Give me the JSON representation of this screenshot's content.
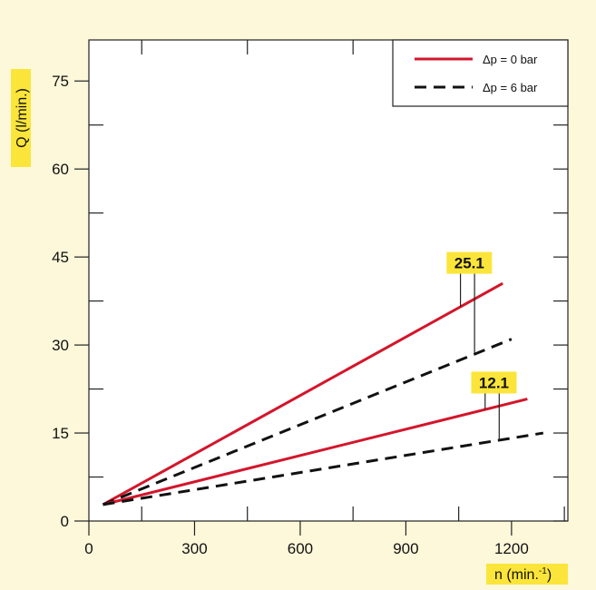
{
  "chart_data": {
    "type": "line",
    "xlabel": "n (min.",
    "xlabel_sup": "-1",
    "xlabel_close": ")",
    "ylabel": "Q (l/min.)",
    "xlim": [
      0,
      1360
    ],
    "ylim": [
      0,
      82
    ],
    "x_ticks": [
      0,
      300,
      600,
      900,
      1200
    ],
    "y_ticks": [
      0,
      15,
      30,
      45,
      60,
      75
    ],
    "grid": false,
    "legend_position": "top-right",
    "colors": {
      "solid": "#d4152a",
      "dashed": "#111111",
      "label_bg": "#fbe53a",
      "background": "#fdf8da"
    },
    "series": [
      {
        "name": "Δp = 0 bar",
        "style": "solid",
        "group": "25.1",
        "points": [
          [
            40,
            2.8
          ],
          [
            1175,
            40.5
          ]
        ]
      },
      {
        "name": "Δp = 6 bar",
        "style": "dashed",
        "group": "25.1",
        "points": [
          [
            40,
            2.8
          ],
          [
            1200,
            31.0
          ]
        ]
      },
      {
        "name": "Δp = 0 bar",
        "style": "solid",
        "group": "12.1",
        "points": [
          [
            40,
            2.8
          ],
          [
            1245,
            20.8
          ]
        ]
      },
      {
        "name": "Δp = 6 bar",
        "style": "dashed",
        "group": "12.1",
        "points": [
          [
            40,
            2.8
          ],
          [
            1290,
            15.0
          ]
        ]
      }
    ],
    "annotations": [
      {
        "text": "25.1",
        "x": 1080,
        "y": 44
      },
      {
        "text": "12.1",
        "x": 1150,
        "y": 23.6
      }
    ],
    "legend": [
      {
        "label": "Δp = 0 bar",
        "style": "solid"
      },
      {
        "label": "Δp = 6 bar",
        "style": "dashed"
      }
    ]
  }
}
